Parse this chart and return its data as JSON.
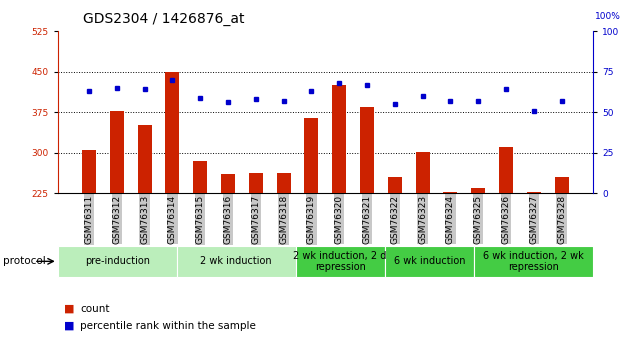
{
  "title": "GDS2304 / 1426876_at",
  "samples": [
    "GSM76311",
    "GSM76312",
    "GSM76313",
    "GSM76314",
    "GSM76315",
    "GSM76316",
    "GSM76317",
    "GSM76318",
    "GSM76319",
    "GSM76320",
    "GSM76321",
    "GSM76322",
    "GSM76323",
    "GSM76324",
    "GSM76325",
    "GSM76326",
    "GSM76327",
    "GSM76328"
  ],
  "counts": [
    305,
    378,
    352,
    450,
    285,
    260,
    262,
    263,
    365,
    425,
    385,
    255,
    302,
    228,
    235,
    310,
    228,
    255
  ],
  "percentiles": [
    63,
    65,
    64,
    70,
    59,
    56,
    58,
    57,
    63,
    68,
    67,
    55,
    60,
    57,
    57,
    64,
    51,
    57
  ],
  "ylim_left": [
    225,
    525
  ],
  "ylim_right": [
    0,
    100
  ],
  "yticks_left": [
    225,
    300,
    375,
    450,
    525
  ],
  "yticks_right": [
    0,
    25,
    50,
    75,
    100
  ],
  "bar_color": "#cc2200",
  "dot_color": "#0000cc",
  "grid_color": "#000000",
  "bg_color": "#ffffff",
  "tick_label_bg": "#c8c8c8",
  "protocol_groups": [
    {
      "label": "pre-induction",
      "start": 0,
      "end": 3,
      "color": "#bbeebb"
    },
    {
      "label": "2 wk induction",
      "start": 4,
      "end": 7,
      "color": "#bbeebb"
    },
    {
      "label": "2 wk induction, 2 d\nrepression",
      "start": 8,
      "end": 10,
      "color": "#44cc44"
    },
    {
      "label": "6 wk induction",
      "start": 11,
      "end": 13,
      "color": "#44cc44"
    },
    {
      "label": "6 wk induction, 2 wk\nrepression",
      "start": 14,
      "end": 17,
      "color": "#44cc44"
    }
  ],
  "legend_count_label": "count",
  "legend_pct_label": "percentile rank within the sample",
  "protocol_label": "protocol",
  "right_top_label": "100%",
  "title_fontsize": 10,
  "tick_fontsize": 6.5,
  "proto_fontsize": 7,
  "legend_fontsize": 7.5
}
